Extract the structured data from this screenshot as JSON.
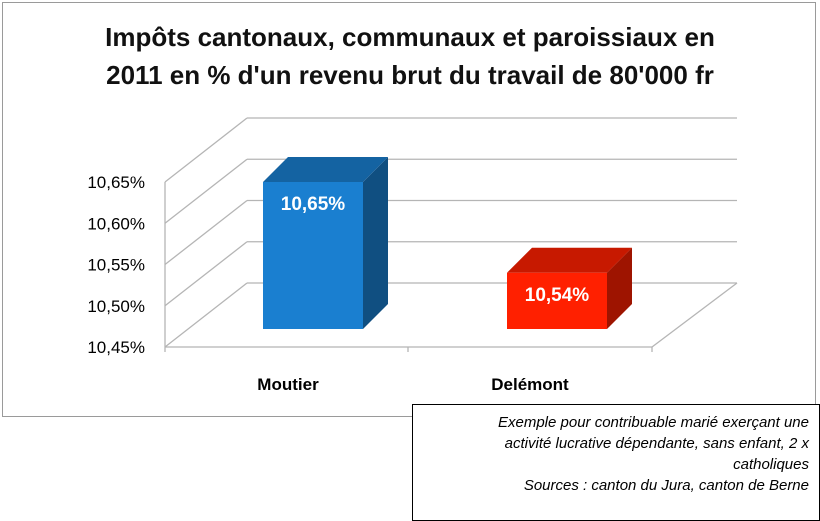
{
  "chart_data": {
    "type": "bar",
    "title_lines": [
      "Impôts cantonaux, communaux et paroissiaux en",
      "2011 en % d'un revenu brut du travail de 80'000 fr"
    ],
    "categories": [
      "Moutier",
      "Delémont"
    ],
    "values": [
      10.65,
      10.54
    ],
    "data_labels": [
      "10,65%",
      "10,54%"
    ],
    "bar_colors": [
      "#1a7fd0",
      "#ff2000"
    ],
    "ylim": [
      10.45,
      10.65
    ],
    "yticks": [
      10.45,
      10.5,
      10.55,
      10.6,
      10.65
    ],
    "ytick_labels": [
      "10,45%",
      "10,50%",
      "10,55%",
      "10,60%",
      "10,65%"
    ],
    "style": "3d-column",
    "grid": true,
    "legend": "none"
  },
  "note": {
    "lines": [
      "Exemple pour contribuable marié exerçant une",
      "activité lucrative dépendante, sans enfant, 2 x",
      "catholiques",
      "Sources : canton du Jura, canton de Berne"
    ]
  }
}
